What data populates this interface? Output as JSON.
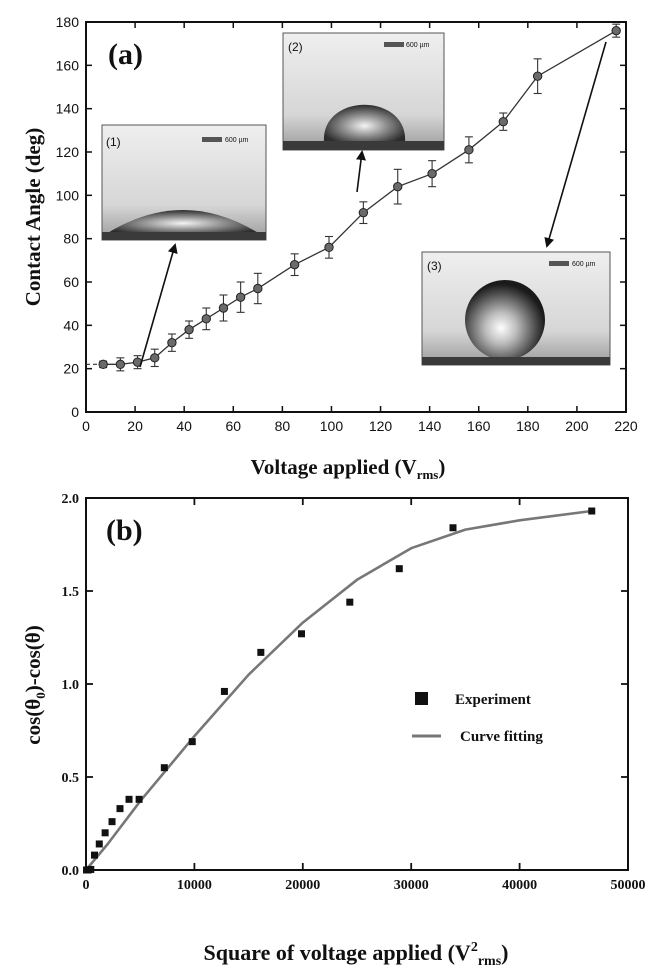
{
  "chart_data": [
    {
      "type": "line",
      "panel_label": "(a)",
      "xlabel": "Voltage applied (V",
      "xlabel_sub": "rms",
      "xlabel_close": ")",
      "ylabel": "Contact Angle (deg)",
      "xlim": [
        0,
        220
      ],
      "ylim": [
        0,
        180
      ],
      "xticks": [
        "0",
        "20",
        "40",
        "60",
        "80",
        "100",
        "120",
        "140",
        "160",
        "180",
        "200",
        "220"
      ],
      "yticks": [
        "0",
        "20",
        "40",
        "60",
        "80",
        "100",
        "120",
        "140",
        "160",
        "180"
      ],
      "series": [
        {
          "x": [
            7,
            14,
            21,
            28,
            35,
            42,
            49,
            56,
            63,
            70,
            85,
            99,
            113,
            127,
            141,
            156,
            170,
            184,
            216
          ],
          "y": [
            22,
            22,
            23,
            25,
            32,
            38,
            43,
            48,
            53,
            57,
            68,
            76,
            92,
            104,
            110,
            121,
            134,
            155,
            176
          ],
          "err": [
            1.5,
            3,
            3,
            4,
            4,
            4,
            5,
            6,
            7,
            7,
            5,
            5,
            5,
            8,
            6,
            6,
            4,
            8,
            3
          ]
        }
      ],
      "insets": [
        {
          "label": "(1)",
          "scale_label": "600 µm",
          "points_to": [
            21,
            23
          ]
        },
        {
          "label": "(2)",
          "scale_label": "600 µm",
          "points_to": [
            113,
            92
          ]
        },
        {
          "label": "(3)",
          "scale_label": "600 µm",
          "points_to": [
            216,
            176
          ]
        }
      ],
      "grid": false
    },
    {
      "type": "scatter",
      "panel_label": "(b)",
      "xlabel": "Square of voltage applied (V",
      "xlabel_sup": "2",
      "xlabel_sub": "rms",
      "xlabel_close": ")",
      "ylabel": "cos(θ",
      "ylabel_sub": "0",
      "ylabel_rest": ")-cos(θ)",
      "xlim": [
        0,
        50000
      ],
      "ylim": [
        0,
        2.0
      ],
      "xticks": [
        "0",
        "10000",
        "20000",
        "30000",
        "40000",
        "50000"
      ],
      "yticks": [
        "0.0",
        "0.5",
        "1.0",
        "1.5",
        "2.0"
      ],
      "series": [
        {
          "name": "Experiment",
          "x": [
            49,
            196,
            441,
            784,
            1225,
            1764,
            2401,
            3136,
            3969,
            4900,
            7225,
            9801,
            12769,
            16129,
            19881,
            24336,
            28900,
            33856,
            46656
          ],
          "y": [
            0.0,
            0.0,
            0.003,
            0.08,
            0.14,
            0.2,
            0.26,
            0.33,
            0.38,
            0.38,
            0.55,
            0.69,
            0.96,
            1.17,
            1.27,
            1.44,
            1.62,
            1.84,
            1.93
          ]
        },
        {
          "name": "Curve fitting",
          "x": [
            0,
            2000,
            5000,
            10000,
            15000,
            20000,
            25000,
            30000,
            35000,
            40000,
            46656
          ],
          "y": [
            0.0,
            0.14,
            0.37,
            0.72,
            1.05,
            1.33,
            1.56,
            1.73,
            1.83,
            1.88,
            1.93
          ]
        }
      ],
      "legend_position": "middle-right",
      "grid": false
    }
  ]
}
